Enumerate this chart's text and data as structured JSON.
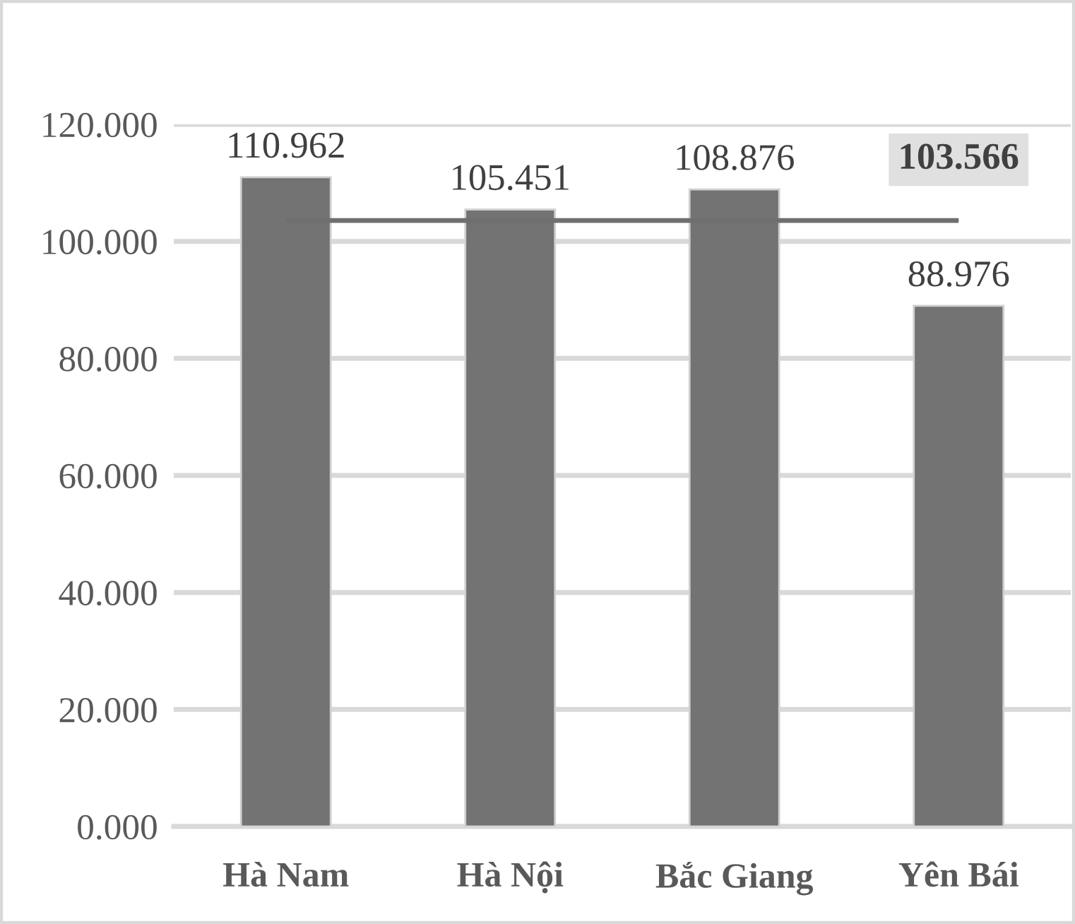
{
  "chart_data": {
    "type": "bar",
    "categories": [
      "Hà Nam",
      "Hà Nội",
      "Bắc Giang",
      "Yên Bái"
    ],
    "values": [
      110.962,
      105.451,
      108.876,
      88.976
    ],
    "color": "#737373",
    "data_labels": true,
    "ylim": [
      0,
      120
    ],
    "yticks": [
      {
        "value": 0,
        "label": "0.000"
      },
      {
        "value": 20,
        "label": "20.000"
      },
      {
        "value": 40,
        "label": "40.000"
      },
      {
        "value": 60,
        "label": "60.000"
      },
      {
        "value": 80,
        "label": "80.000"
      },
      {
        "value": 100,
        "label": "100.000"
      },
      {
        "value": 120,
        "label": "120.000"
      }
    ],
    "grid": "y",
    "ref_lines": [
      {
        "axis": "y",
        "value": 103.566,
        "label": "103.566",
        "color": "#6f6f6f"
      }
    ]
  }
}
